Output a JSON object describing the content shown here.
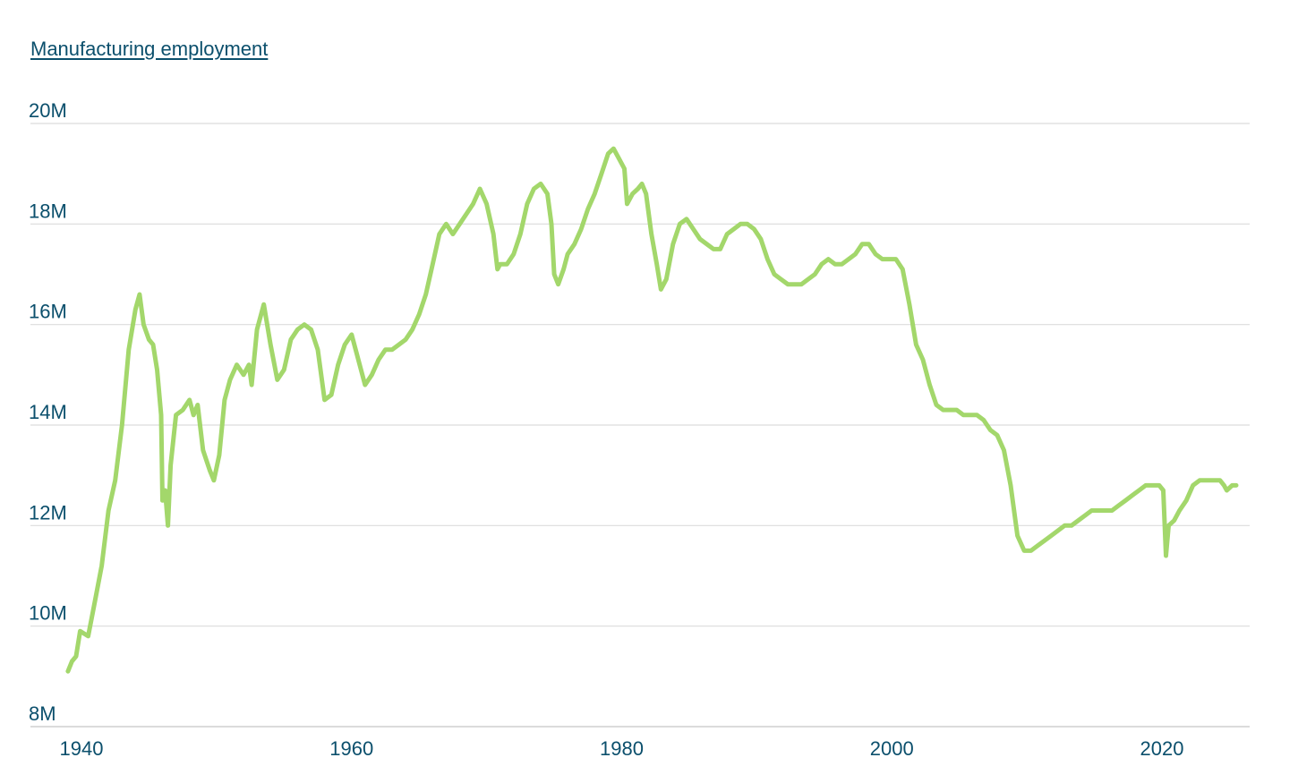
{
  "legend": {
    "series_link_label": "Manufacturing employment"
  },
  "colors": {
    "series": "#a3d76b",
    "text": "#0b4f6c",
    "grid": "#dcdcdc"
  },
  "chart_data": {
    "type": "line",
    "title": "",
    "xlabel": "",
    "ylabel": "",
    "xlim": [
      1939,
      2025.5
    ],
    "ylim": [
      8,
      20
    ],
    "grid": true,
    "legend_position": "top-left",
    "yticks": [
      8,
      10,
      12,
      14,
      16,
      18,
      20
    ],
    "ytick_labels": [
      "8M",
      "10M",
      "12M",
      "14M",
      "16M",
      "18M",
      "20M"
    ],
    "xticks": [
      1940,
      1960,
      1980,
      2000,
      2020
    ],
    "xtick_labels": [
      "1940",
      "1960",
      "1980",
      "2000",
      "2020"
    ],
    "series": [
      {
        "name": "Manufacturing employment",
        "unit": "millions",
        "points": [
          [
            1939.0,
            9.1
          ],
          [
            1939.3,
            9.3
          ],
          [
            1939.6,
            9.4
          ],
          [
            1939.9,
            9.9
          ],
          [
            1940.5,
            9.8
          ],
          [
            1941.0,
            10.5
          ],
          [
            1941.5,
            11.2
          ],
          [
            1942.0,
            12.3
          ],
          [
            1942.5,
            12.9
          ],
          [
            1943.0,
            14.0
          ],
          [
            1943.5,
            15.5
          ],
          [
            1944.0,
            16.3
          ],
          [
            1944.3,
            16.6
          ],
          [
            1944.6,
            16.0
          ],
          [
            1945.0,
            15.7
          ],
          [
            1945.3,
            15.6
          ],
          [
            1945.6,
            15.1
          ],
          [
            1945.9,
            14.2
          ],
          [
            1946.0,
            12.5
          ],
          [
            1946.2,
            12.7
          ],
          [
            1946.4,
            12.0
          ],
          [
            1946.6,
            13.2
          ],
          [
            1947.0,
            14.2
          ],
          [
            1947.5,
            14.3
          ],
          [
            1948.0,
            14.5
          ],
          [
            1948.3,
            14.2
          ],
          [
            1948.6,
            14.4
          ],
          [
            1949.0,
            13.5
          ],
          [
            1949.5,
            13.1
          ],
          [
            1949.8,
            12.9
          ],
          [
            1950.2,
            13.4
          ],
          [
            1950.6,
            14.5
          ],
          [
            1951.0,
            14.9
          ],
          [
            1951.5,
            15.2
          ],
          [
            1952.0,
            15.0
          ],
          [
            1952.4,
            15.2
          ],
          [
            1952.6,
            14.8
          ],
          [
            1953.0,
            15.9
          ],
          [
            1953.5,
            16.4
          ],
          [
            1954.0,
            15.6
          ],
          [
            1954.5,
            14.9
          ],
          [
            1955.0,
            15.1
          ],
          [
            1955.5,
            15.7
          ],
          [
            1956.0,
            15.9
          ],
          [
            1956.5,
            16.0
          ],
          [
            1957.0,
            15.9
          ],
          [
            1957.5,
            15.5
          ],
          [
            1958.0,
            14.5
          ],
          [
            1958.5,
            14.6
          ],
          [
            1959.0,
            15.2
          ],
          [
            1959.5,
            15.6
          ],
          [
            1960.0,
            15.8
          ],
          [
            1960.5,
            15.3
          ],
          [
            1961.0,
            14.8
          ],
          [
            1961.5,
            15.0
          ],
          [
            1962.0,
            15.3
          ],
          [
            1962.5,
            15.5
          ],
          [
            1963.0,
            15.5
          ],
          [
            1963.5,
            15.6
          ],
          [
            1964.0,
            15.7
          ],
          [
            1964.5,
            15.9
          ],
          [
            1965.0,
            16.2
          ],
          [
            1965.5,
            16.6
          ],
          [
            1966.0,
            17.2
          ],
          [
            1966.5,
            17.8
          ],
          [
            1967.0,
            18.0
          ],
          [
            1967.5,
            17.8
          ],
          [
            1968.0,
            18.0
          ],
          [
            1968.5,
            18.2
          ],
          [
            1969.0,
            18.4
          ],
          [
            1969.5,
            18.7
          ],
          [
            1970.0,
            18.4
          ],
          [
            1970.5,
            17.8
          ],
          [
            1970.8,
            17.1
          ],
          [
            1971.0,
            17.2
          ],
          [
            1971.5,
            17.2
          ],
          [
            1972.0,
            17.4
          ],
          [
            1972.5,
            17.8
          ],
          [
            1973.0,
            18.4
          ],
          [
            1973.5,
            18.7
          ],
          [
            1974.0,
            18.8
          ],
          [
            1974.5,
            18.6
          ],
          [
            1974.8,
            18.0
          ],
          [
            1975.0,
            17.0
          ],
          [
            1975.3,
            16.8
          ],
          [
            1975.7,
            17.1
          ],
          [
            1976.0,
            17.4
          ],
          [
            1976.5,
            17.6
          ],
          [
            1977.0,
            17.9
          ],
          [
            1977.5,
            18.3
          ],
          [
            1978.0,
            18.6
          ],
          [
            1978.5,
            19.0
          ],
          [
            1979.0,
            19.4
          ],
          [
            1979.4,
            19.5
          ],
          [
            1979.8,
            19.3
          ],
          [
            1980.2,
            19.1
          ],
          [
            1980.4,
            18.4
          ],
          [
            1980.8,
            18.6
          ],
          [
            1981.2,
            18.7
          ],
          [
            1981.5,
            18.8
          ],
          [
            1981.8,
            18.6
          ],
          [
            1982.2,
            17.8
          ],
          [
            1982.6,
            17.2
          ],
          [
            1982.9,
            16.7
          ],
          [
            1983.3,
            16.9
          ],
          [
            1983.8,
            17.6
          ],
          [
            1984.3,
            18.0
          ],
          [
            1984.8,
            18.1
          ],
          [
            1985.3,
            17.9
          ],
          [
            1985.8,
            17.7
          ],
          [
            1986.3,
            17.6
          ],
          [
            1986.8,
            17.5
          ],
          [
            1987.3,
            17.5
          ],
          [
            1987.8,
            17.8
          ],
          [
            1988.3,
            17.9
          ],
          [
            1988.8,
            18.0
          ],
          [
            1989.3,
            18.0
          ],
          [
            1989.8,
            17.9
          ],
          [
            1990.3,
            17.7
          ],
          [
            1990.8,
            17.3
          ],
          [
            1991.3,
            17.0
          ],
          [
            1991.8,
            16.9
          ],
          [
            1992.3,
            16.8
          ],
          [
            1992.8,
            16.8
          ],
          [
            1993.3,
            16.8
          ],
          [
            1993.8,
            16.9
          ],
          [
            1994.3,
            17.0
          ],
          [
            1994.8,
            17.2
          ],
          [
            1995.3,
            17.3
          ],
          [
            1995.8,
            17.2
          ],
          [
            1996.3,
            17.2
          ],
          [
            1996.8,
            17.3
          ],
          [
            1997.3,
            17.4
          ],
          [
            1997.8,
            17.6
          ],
          [
            1998.3,
            17.6
          ],
          [
            1998.8,
            17.4
          ],
          [
            1999.3,
            17.3
          ],
          [
            1999.8,
            17.3
          ],
          [
            2000.3,
            17.3
          ],
          [
            2000.8,
            17.1
          ],
          [
            2001.3,
            16.4
          ],
          [
            2001.8,
            15.6
          ],
          [
            2002.3,
            15.3
          ],
          [
            2002.8,
            14.8
          ],
          [
            2003.3,
            14.4
          ],
          [
            2003.8,
            14.3
          ],
          [
            2004.3,
            14.3
          ],
          [
            2004.8,
            14.3
          ],
          [
            2005.3,
            14.2
          ],
          [
            2005.8,
            14.2
          ],
          [
            2006.3,
            14.2
          ],
          [
            2006.8,
            14.1
          ],
          [
            2007.3,
            13.9
          ],
          [
            2007.8,
            13.8
          ],
          [
            2008.3,
            13.5
          ],
          [
            2008.8,
            12.8
          ],
          [
            2009.3,
            11.8
          ],
          [
            2009.8,
            11.5
          ],
          [
            2010.3,
            11.5
          ],
          [
            2010.8,
            11.6
          ],
          [
            2011.3,
            11.7
          ],
          [
            2011.8,
            11.8
          ],
          [
            2012.3,
            11.9
          ],
          [
            2012.8,
            12.0
          ],
          [
            2013.3,
            12.0
          ],
          [
            2013.8,
            12.1
          ],
          [
            2014.3,
            12.2
          ],
          [
            2014.8,
            12.3
          ],
          [
            2015.3,
            12.3
          ],
          [
            2015.8,
            12.3
          ],
          [
            2016.3,
            12.3
          ],
          [
            2016.8,
            12.4
          ],
          [
            2017.3,
            12.5
          ],
          [
            2017.8,
            12.6
          ],
          [
            2018.3,
            12.7
          ],
          [
            2018.8,
            12.8
          ],
          [
            2019.3,
            12.8
          ],
          [
            2019.8,
            12.8
          ],
          [
            2020.1,
            12.7
          ],
          [
            2020.3,
            11.4
          ],
          [
            2020.5,
            12.0
          ],
          [
            2020.9,
            12.1
          ],
          [
            2021.3,
            12.3
          ],
          [
            2021.8,
            12.5
          ],
          [
            2022.3,
            12.8
          ],
          [
            2022.8,
            12.9
          ],
          [
            2023.3,
            12.9
          ],
          [
            2023.8,
            12.9
          ],
          [
            2024.3,
            12.9
          ],
          [
            2024.6,
            12.8
          ],
          [
            2024.8,
            12.7
          ],
          [
            2025.2,
            12.8
          ],
          [
            2025.5,
            12.8
          ]
        ]
      }
    ]
  }
}
